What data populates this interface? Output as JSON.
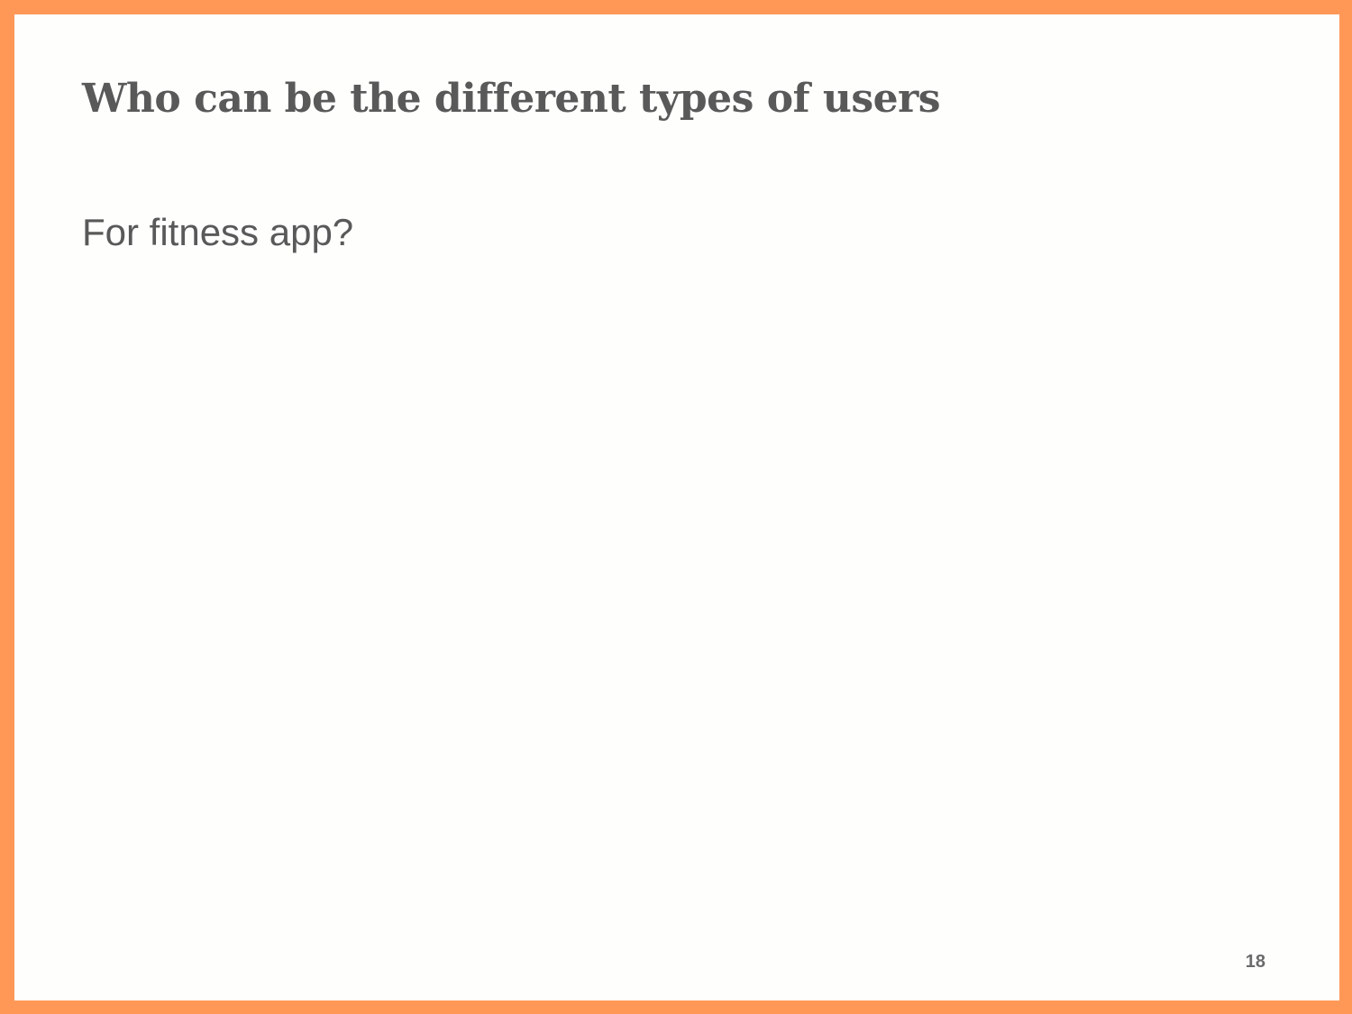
{
  "slide": {
    "title": "Who can be the different types of users",
    "body": "For fitness app?",
    "page_number": "18",
    "colors": {
      "frame": "#ff9857",
      "background": "#fefefc",
      "text": "#595959"
    }
  }
}
